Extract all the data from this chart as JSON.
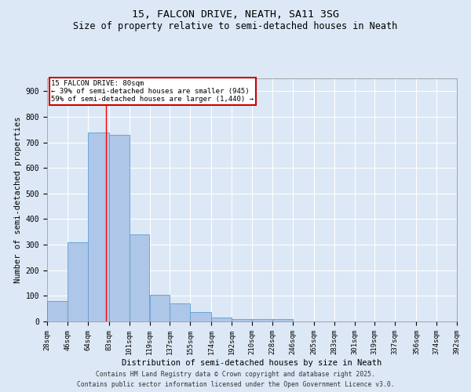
{
  "title1": "15, FALCON DRIVE, NEATH, SA11 3SG",
  "title2": "Size of property relative to semi-detached houses in Neath",
  "xlabel": "Distribution of semi-detached houses by size in Neath",
  "ylabel": "Number of semi-detached properties",
  "bar_values": [
    80,
    310,
    740,
    730,
    340,
    105,
    70,
    38,
    15,
    10,
    10,
    10,
    0,
    0,
    0,
    0,
    0,
    0,
    0,
    0
  ],
  "bin_edges": [
    28,
    46,
    64,
    83,
    101,
    119,
    137,
    155,
    174,
    192,
    210,
    228,
    246,
    265,
    283,
    301,
    319,
    337,
    356,
    374,
    392
  ],
  "tick_labels": [
    "28sqm",
    "46sqm",
    "64sqm",
    "83sqm",
    "101sqm",
    "119sqm",
    "137sqm",
    "155sqm",
    "174sqm",
    "192sqm",
    "210sqm",
    "228sqm",
    "246sqm",
    "265sqm",
    "283sqm",
    "301sqm",
    "319sqm",
    "337sqm",
    "356sqm",
    "374sqm",
    "392sqm"
  ],
  "bar_color": "#aec6e8",
  "bar_edge_color": "#5a9fd4",
  "red_line_x": 80,
  "annotation_title": "15 FALCON DRIVE: 80sqm",
  "annotation_line1": "← 39% of semi-detached houses are smaller (945)",
  "annotation_line2": "59% of semi-detached houses are larger (1,440) →",
  "annotation_box_color": "#ffffff",
  "annotation_border_color": "#cc0000",
  "ylim": [
    0,
    950
  ],
  "yticks": [
    0,
    100,
    200,
    300,
    400,
    500,
    600,
    700,
    800,
    900
  ],
  "bg_color": "#dce8f5",
  "grid_color": "#ffffff",
  "footer1": "Contains HM Land Registry data © Crown copyright and database right 2025.",
  "footer2": "Contains public sector information licensed under the Open Government Licence v3.0.",
  "title1_fontsize": 9.5,
  "title2_fontsize": 8.5,
  "axis_label_fontsize": 7.5,
  "tick_fontsize": 6.5,
  "footer_fontsize": 5.8,
  "annotation_fontsize": 6.5
}
